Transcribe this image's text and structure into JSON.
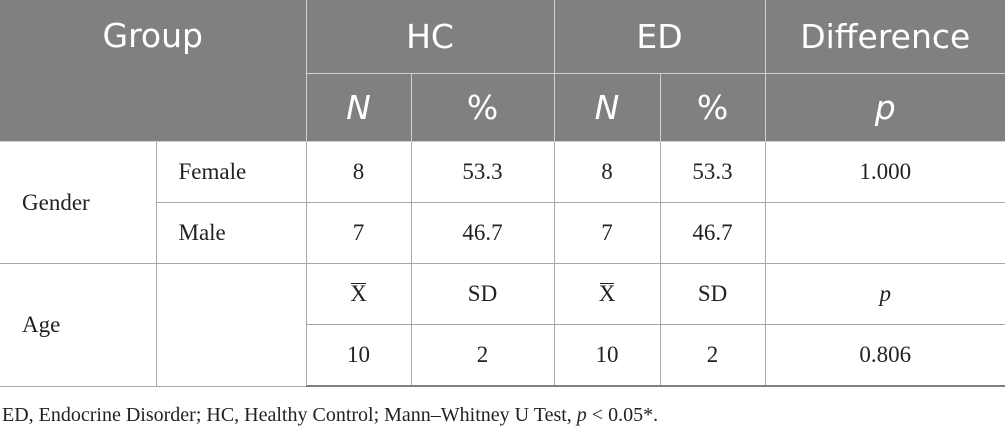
{
  "table": {
    "header": {
      "group": "Group",
      "hc": "HC",
      "ed": "ED",
      "difference": "Difference",
      "n": "N",
      "pct": "%",
      "p": "p"
    },
    "gender": {
      "label": "Gender",
      "female": {
        "label": "Female",
        "hc_n": "8",
        "hc_pct": "53.3",
        "ed_n": "8",
        "ed_pct": "53.3",
        "p": "1.000"
      },
      "male": {
        "label": "Male",
        "hc_n": "7",
        "hc_pct": "46.7",
        "ed_n": "7",
        "ed_pct": "46.7",
        "p": ""
      }
    },
    "age": {
      "label": "Age",
      "mean_symbol": "X",
      "sd": "SD",
      "p": "p",
      "values": {
        "hc_mean": "10",
        "hc_sd": "2",
        "ed_mean": "10",
        "ed_sd": "2",
        "p": "0.806"
      }
    }
  },
  "footnote": {
    "text": "ED, Endocrine Disorder; HC, Healthy Control; Mann–Whitney U Test, ",
    "p": "p",
    "threshold": " < 0.05*."
  }
}
